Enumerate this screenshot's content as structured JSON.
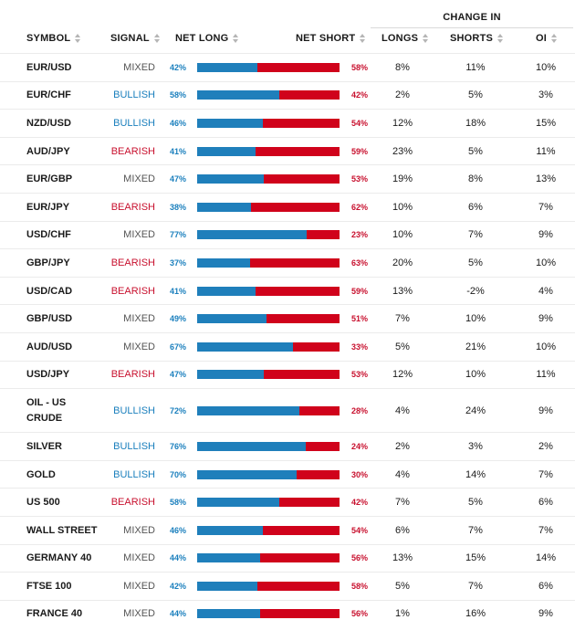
{
  "header": {
    "change_in": "CHANGE IN",
    "symbol": "SYMBOL",
    "signal": "SIGNAL",
    "net_long": "NET LONG",
    "net_short": "NET SHORT",
    "longs": "LONGS",
    "shorts": "SHORTS",
    "oi": "OI"
  },
  "colors": {
    "long_bar": "#1f7fbb",
    "short_bar": "#d0021b",
    "bullish": "#1a7fbd",
    "bearish": "#c8102e",
    "mixed": "#555555"
  },
  "rows": [
    {
      "symbol": "EUR/USD",
      "signal": "MIXED",
      "net_long": "42%",
      "net_short": "58%",
      "long_fraction": 0.42,
      "longs": "8%",
      "shorts": "11%",
      "oi": "10%"
    },
    {
      "symbol": "EUR/CHF",
      "signal": "BULLISH",
      "net_long": "58%",
      "net_short": "42%",
      "long_fraction": 0.58,
      "longs": "2%",
      "shorts": "5%",
      "oi": "3%"
    },
    {
      "symbol": "NZD/USD",
      "signal": "BULLISH",
      "net_long": "46%",
      "net_short": "54%",
      "long_fraction": 0.46,
      "longs": "12%",
      "shorts": "18%",
      "oi": "15%"
    },
    {
      "symbol": "AUD/JPY",
      "signal": "BEARISH",
      "net_long": "41%",
      "net_short": "59%",
      "long_fraction": 0.41,
      "longs": "23%",
      "shorts": "5%",
      "oi": "11%"
    },
    {
      "symbol": "EUR/GBP",
      "signal": "MIXED",
      "net_long": "47%",
      "net_short": "53%",
      "long_fraction": 0.47,
      "longs": "19%",
      "shorts": "8%",
      "oi": "13%"
    },
    {
      "symbol": "EUR/JPY",
      "signal": "BEARISH",
      "net_long": "38%",
      "net_short": "62%",
      "long_fraction": 0.38,
      "longs": "10%",
      "shorts": "6%",
      "oi": "7%"
    },
    {
      "symbol": "USD/CHF",
      "signal": "MIXED",
      "net_long": "77%",
      "net_short": "23%",
      "long_fraction": 0.77,
      "longs": "10%",
      "shorts": "7%",
      "oi": "9%"
    },
    {
      "symbol": "GBP/JPY",
      "signal": "BEARISH",
      "net_long": "37%",
      "net_short": "63%",
      "long_fraction": 0.37,
      "longs": "20%",
      "shorts": "5%",
      "oi": "10%"
    },
    {
      "symbol": "USD/CAD",
      "signal": "BEARISH",
      "net_long": "41%",
      "net_short": "59%",
      "long_fraction": 0.41,
      "longs": "13%",
      "shorts": "-2%",
      "oi": "4%"
    },
    {
      "symbol": "GBP/USD",
      "signal": "MIXED",
      "net_long": "49%",
      "net_short": "51%",
      "long_fraction": 0.49,
      "longs": "7%",
      "shorts": "10%",
      "oi": "9%"
    },
    {
      "symbol": "AUD/USD",
      "signal": "MIXED",
      "net_long": "67%",
      "net_short": "33%",
      "long_fraction": 0.67,
      "longs": "5%",
      "shorts": "21%",
      "oi": "10%"
    },
    {
      "symbol": "USD/JPY",
      "signal": "BEARISH",
      "net_long": "47%",
      "net_short": "53%",
      "long_fraction": 0.47,
      "longs": "12%",
      "shorts": "10%",
      "oi": "11%"
    },
    {
      "symbol": "OIL - US CRUDE",
      "signal": "BULLISH",
      "net_long": "72%",
      "net_short": "28%",
      "long_fraction": 0.72,
      "longs": "4%",
      "shorts": "24%",
      "oi": "9%"
    },
    {
      "symbol": "SILVER",
      "signal": "BULLISH",
      "net_long": "76%",
      "net_short": "24%",
      "long_fraction": 0.76,
      "longs": "2%",
      "shorts": "3%",
      "oi": "2%"
    },
    {
      "symbol": "GOLD",
      "signal": "BULLISH",
      "net_long": "70%",
      "net_short": "30%",
      "long_fraction": 0.7,
      "longs": "4%",
      "shorts": "14%",
      "oi": "7%"
    },
    {
      "symbol": "US 500",
      "signal": "BEARISH",
      "net_long": "58%",
      "net_short": "42%",
      "long_fraction": 0.58,
      "longs": "7%",
      "shorts": "5%",
      "oi": "6%"
    },
    {
      "symbol": "WALL STREET",
      "signal": "MIXED",
      "net_long": "46%",
      "net_short": "54%",
      "long_fraction": 0.46,
      "longs": "6%",
      "shorts": "7%",
      "oi": "7%"
    },
    {
      "symbol": "GERMANY 40",
      "signal": "MIXED",
      "net_long": "44%",
      "net_short": "56%",
      "long_fraction": 0.44,
      "longs": "13%",
      "shorts": "15%",
      "oi": "14%"
    },
    {
      "symbol": "FTSE 100",
      "signal": "MIXED",
      "net_long": "42%",
      "net_short": "58%",
      "long_fraction": 0.42,
      "longs": "5%",
      "shorts": "7%",
      "oi": "6%"
    },
    {
      "symbol": "FRANCE 40",
      "signal": "MIXED",
      "net_long": "44%",
      "net_short": "56%",
      "long_fraction": 0.44,
      "longs": "1%",
      "shorts": "16%",
      "oi": "9%"
    }
  ]
}
